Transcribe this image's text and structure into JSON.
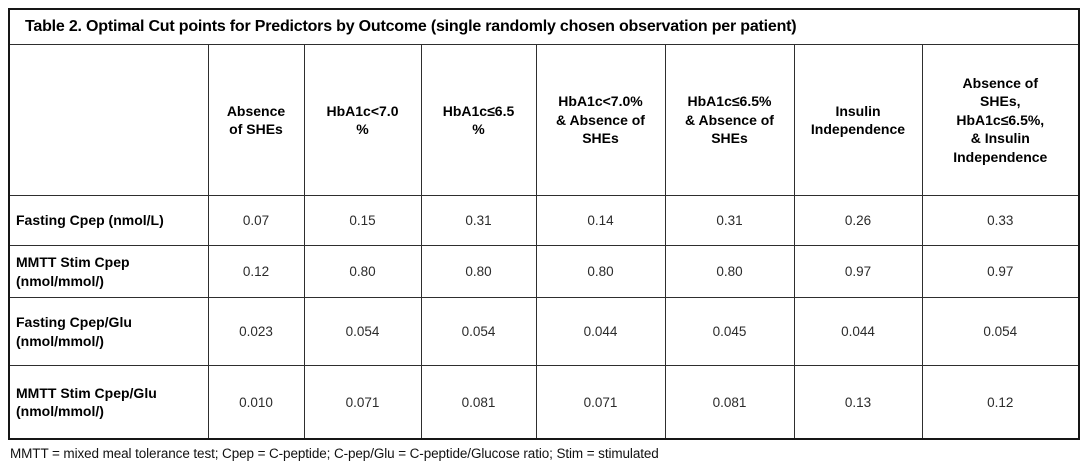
{
  "table": {
    "title": "Table 2. Optimal Cut points for Predictors by Outcome (single randomly chosen observation per patient)",
    "columns": [
      "",
      "Absence\nof SHEs",
      "HbA1c<7.0\n%",
      "HbA1c≤6.5\n%",
      "HbA1c<7.0%\n& Absence of\nSHEs",
      "HbA1c≤6.5%\n& Absence of\nSHEs",
      "Insulin\nIndependence",
      "Absence of\nSHEs,\nHbA1c≤6.5%,\n& Insulin\nIndependence"
    ],
    "rows": [
      {
        "label": "Fasting Cpep (nmol/L)",
        "values": [
          "0.07",
          "0.15",
          "0.31",
          "0.14",
          "0.31",
          "0.26",
          "0.33"
        ]
      },
      {
        "label": "MMTT Stim Cpep\n(nmol/mmol/)",
        "values": [
          "0.12",
          "0.80",
          "0.80",
          "0.80",
          "0.80",
          "0.97",
          "0.97"
        ]
      },
      {
        "label": "Fasting Cpep/Glu\n(nmol/mmol/)",
        "values": [
          "0.023",
          "0.054",
          "0.054",
          "0.044",
          "0.045",
          "0.044",
          "0.054"
        ]
      },
      {
        "label": "MMTT Stim Cpep/Glu\n(nmol/mmol/)",
        "values": [
          "0.010",
          "0.071",
          "0.081",
          "0.071",
          "0.081",
          "0.13",
          "0.12"
        ]
      }
    ],
    "footnote": "MMTT = mixed meal tolerance test; Cpep = C-peptide; C-pep/Glu = C-peptide/Glucose ratio; Stim = stimulated"
  }
}
